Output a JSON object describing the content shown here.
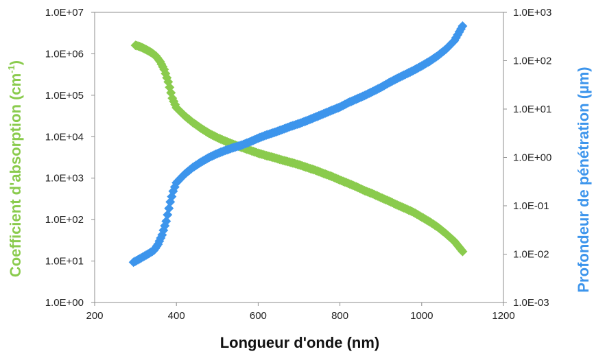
{
  "chart_data": {
    "type": "scatter",
    "xlabel": "Longueur d'onde (nm)",
    "ylabel_left": {
      "pre": "Coefficient d'absorption (cm",
      "sup": "-1",
      "post": ")"
    },
    "ylabel_right": "Profondeur de pénétration (µm)",
    "xlim": [
      200,
      1200
    ],
    "x_ticks": [
      200,
      400,
      600,
      800,
      1000,
      1200
    ],
    "y_left_log": true,
    "y_left_lim": [
      1,
      10000000
    ],
    "y_left_ticks": [
      "1.0E+00",
      "1.0E+01",
      "1.0E+02",
      "1.0E+03",
      "1.0E+04",
      "1.0E+05",
      "1.0E+06",
      "1.0E+07"
    ],
    "y_right_log": true,
    "y_right_lim": [
      0.001,
      1000
    ],
    "y_right_ticks": [
      "1.0E-03",
      "1.0E-02",
      "1.0E-01",
      "1.0E+00",
      "1.0E+01",
      "1.0E+02",
      "1.0E+03"
    ],
    "grid": false,
    "colors": {
      "absorption": "#8ACB4D",
      "penetration": "#3D95EC"
    },
    "series": [
      {
        "axis": "left",
        "marker": "diamond",
        "color": "#8ACB4D",
        "points": [
          [
            300,
            1600000
          ],
          [
            310,
            1500000
          ],
          [
            320,
            1350000
          ],
          [
            330,
            1200000
          ],
          [
            340,
            1050000
          ],
          [
            350,
            880000
          ],
          [
            360,
            650000
          ],
          [
            370,
            420000
          ],
          [
            380,
            210000
          ],
          [
            390,
            85000
          ],
          [
            400,
            50000
          ],
          [
            420,
            32000
          ],
          [
            440,
            22000
          ],
          [
            460,
            16000
          ],
          [
            480,
            12000
          ],
          [
            500,
            9500
          ],
          [
            520,
            7800
          ],
          [
            540,
            6500
          ],
          [
            560,
            5500
          ],
          [
            580,
            4700
          ],
          [
            600,
            4000
          ],
          [
            620,
            3500
          ],
          [
            640,
            3100
          ],
          [
            660,
            2700
          ],
          [
            680,
            2400
          ],
          [
            700,
            2100
          ],
          [
            720,
            1800
          ],
          [
            740,
            1550
          ],
          [
            760,
            1300
          ],
          [
            780,
            1100
          ],
          [
            800,
            900
          ],
          [
            820,
            750
          ],
          [
            840,
            620
          ],
          [
            860,
            500
          ],
          [
            880,
            420
          ],
          [
            900,
            340
          ],
          [
            920,
            280
          ],
          [
            940,
            225
          ],
          [
            960,
            185
          ],
          [
            980,
            150
          ],
          [
            1000,
            115
          ],
          [
            1020,
            88
          ],
          [
            1040,
            65
          ],
          [
            1060,
            45
          ],
          [
            1080,
            30
          ],
          [
            1100,
            17
          ]
        ]
      },
      {
        "axis": "right",
        "marker": "diamond",
        "color": "#3D95EC",
        "points": [
          [
            295,
            0.0068
          ],
          [
            310,
            0.008
          ],
          [
            330,
            0.01
          ],
          [
            345,
            0.012
          ],
          [
            355,
            0.016
          ],
          [
            365,
            0.025
          ],
          [
            375,
            0.048
          ],
          [
            385,
            0.12
          ],
          [
            392,
            0.2
          ],
          [
            400,
            0.3
          ],
          [
            420,
            0.45
          ],
          [
            440,
            0.62
          ],
          [
            460,
            0.8
          ],
          [
            480,
            1.0
          ],
          [
            500,
            1.2
          ],
          [
            520,
            1.4
          ],
          [
            540,
            1.6
          ],
          [
            560,
            1.8
          ],
          [
            580,
            2.1
          ],
          [
            600,
            2.5
          ],
          [
            620,
            2.9
          ],
          [
            640,
            3.3
          ],
          [
            660,
            3.8
          ],
          [
            680,
            4.4
          ],
          [
            700,
            5.0
          ],
          [
            720,
            5.8
          ],
          [
            740,
            6.8
          ],
          [
            760,
            8.0
          ],
          [
            780,
            9.4
          ],
          [
            800,
            11
          ],
          [
            820,
            13.5
          ],
          [
            840,
            16
          ],
          [
            860,
            19
          ],
          [
            880,
            23
          ],
          [
            900,
            28
          ],
          [
            920,
            35
          ],
          [
            940,
            43
          ],
          [
            960,
            52
          ],
          [
            980,
            63
          ],
          [
            1000,
            78
          ],
          [
            1020,
            98
          ],
          [
            1040,
            128
          ],
          [
            1060,
            175
          ],
          [
            1080,
            260
          ],
          [
            1100,
            520
          ]
        ]
      }
    ]
  }
}
